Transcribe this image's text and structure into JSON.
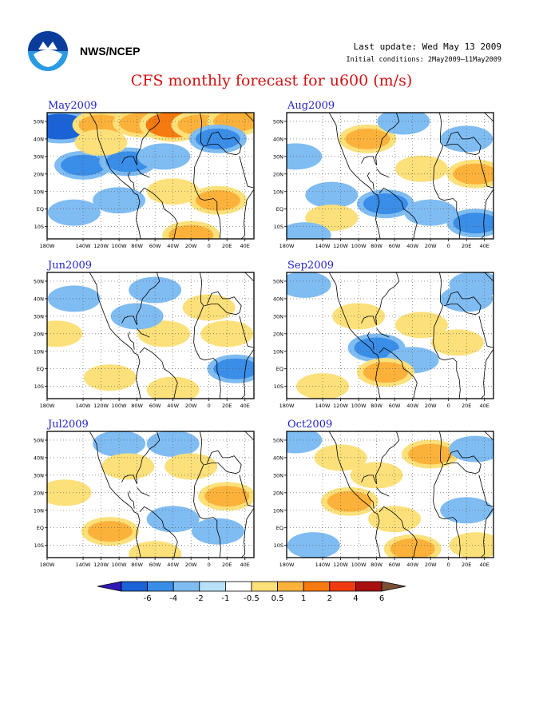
{
  "header": {
    "org": "NWS/NCEP",
    "last_update": "Last update: Wed May 13 2009",
    "initial_conditions": "Initial conditions: 2May2009–11May2009",
    "title": "CFS monthly forecast for u600 (m/s)",
    "logo_icon": "noaa-logo-icon"
  },
  "chart_data": {
    "type": "heatmap",
    "title": "CFS monthly forecast for u600 (m/s)",
    "x_ticks": [
      "180W",
      "140W",
      "120W",
      "100W",
      "80W",
      "60W",
      "40W",
      "20W",
      "0",
      "20E",
      "40E"
    ],
    "y_ticks": [
      "50N",
      "40N",
      "30N",
      "20N",
      "10N",
      "EQ",
      "10S"
    ],
    "panels": [
      {
        "label": "May2009",
        "anomalies": [
          {
            "lon": -165,
            "lat": 47,
            "value": -4
          },
          {
            "lon": -120,
            "lat": 48,
            "value": 2
          },
          {
            "lon": -75,
            "lat": 49,
            "value": 2
          },
          {
            "lon": -40,
            "lat": 48,
            "value": 4
          },
          {
            "lon": -10,
            "lat": 48,
            "value": 2
          },
          {
            "lon": 30,
            "lat": 50,
            "value": 2
          },
          {
            "lon": -140,
            "lat": 25,
            "value": -2
          },
          {
            "lon": -90,
            "lat": 27,
            "value": -2
          },
          {
            "lon": -50,
            "lat": 30,
            "value": -1
          },
          {
            "lon": 10,
            "lat": 40,
            "value": -2
          },
          {
            "lon": -120,
            "lat": 38,
            "value": 1
          },
          {
            "lon": -40,
            "lat": 10,
            "value": 1
          },
          {
            "lon": 10,
            "lat": 5,
            "value": 2
          },
          {
            "lon": -150,
            "lat": -2,
            "value": -1
          },
          {
            "lon": -20,
            "lat": -15,
            "value": 2
          },
          {
            "lon": -100,
            "lat": 5,
            "value": -1
          }
        ]
      },
      {
        "label": "Aug2009",
        "anomalies": [
          {
            "lon": -90,
            "lat": 40,
            "value": 2
          },
          {
            "lon": -30,
            "lat": 23,
            "value": 1
          },
          {
            "lon": 30,
            "lat": 20,
            "value": 2
          },
          {
            "lon": -130,
            "lat": 8,
            "value": -1
          },
          {
            "lon": -70,
            "lat": 3,
            "value": -2
          },
          {
            "lon": -20,
            "lat": -2,
            "value": -1
          },
          {
            "lon": 30,
            "lat": -8,
            "value": -2
          },
          {
            "lon": -130,
            "lat": -5,
            "value": 1
          },
          {
            "lon": -170,
            "lat": 30,
            "value": -1
          },
          {
            "lon": 20,
            "lat": 40,
            "value": -1
          },
          {
            "lon": -50,
            "lat": 50,
            "value": -1
          },
          {
            "lon": -160,
            "lat": -15,
            "value": -1
          }
        ]
      },
      {
        "label": "Jun2009",
        "anomalies": [
          {
            "lon": -150,
            "lat": 40,
            "value": -1
          },
          {
            "lon": -50,
            "lat": 20,
            "value": 1
          },
          {
            "lon": 20,
            "lat": 20,
            "value": 1
          },
          {
            "lon": 30,
            "lat": 0,
            "value": -2
          },
          {
            "lon": -40,
            "lat": -12,
            "value": 1
          },
          {
            "lon": -170,
            "lat": 20,
            "value": 1
          },
          {
            "lon": -60,
            "lat": 45,
            "value": -1
          },
          {
            "lon": 0,
            "lat": 35,
            "value": 1
          },
          {
            "lon": -110,
            "lat": -5,
            "value": 1
          },
          {
            "lon": -80,
            "lat": 30,
            "value": -1
          }
        ]
      },
      {
        "label": "Sep2009",
        "anomalies": [
          {
            "lon": -160,
            "lat": 48,
            "value": -1
          },
          {
            "lon": -80,
            "lat": 12,
            "value": -2
          },
          {
            "lon": -40,
            "lat": 5,
            "value": -1
          },
          {
            "lon": -100,
            "lat": 30,
            "value": 1
          },
          {
            "lon": -30,
            "lat": 25,
            "value": 1
          },
          {
            "lon": -70,
            "lat": -2,
            "value": 2
          },
          {
            "lon": -140,
            "lat": -10,
            "value": 1
          },
          {
            "lon": 20,
            "lat": 40,
            "value": -1
          },
          {
            "lon": 30,
            "lat": 48,
            "value": -1
          },
          {
            "lon": 10,
            "lat": 15,
            "value": 1
          }
        ]
      },
      {
        "label": "Jul2009",
        "anomalies": [
          {
            "lon": -100,
            "lat": 48,
            "value": -1
          },
          {
            "lon": -40,
            "lat": 48,
            "value": -1
          },
          {
            "lon": -90,
            "lat": 35,
            "value": 1
          },
          {
            "lon": 20,
            "lat": 18,
            "value": 2
          },
          {
            "lon": -110,
            "lat": -2,
            "value": 2
          },
          {
            "lon": -40,
            "lat": 5,
            "value": -1
          },
          {
            "lon": 10,
            "lat": -2,
            "value": -1
          },
          {
            "lon": -60,
            "lat": -15,
            "value": 1
          },
          {
            "lon": -160,
            "lat": 20,
            "value": 1
          },
          {
            "lon": -20,
            "lat": 35,
            "value": 1
          }
        ]
      },
      {
        "label": "Oct2009",
        "anomalies": [
          {
            "lon": -120,
            "lat": 40,
            "value": 1
          },
          {
            "lon": -20,
            "lat": 42,
            "value": 2
          },
          {
            "lon": 30,
            "lat": 45,
            "value": -1
          },
          {
            "lon": -110,
            "lat": 15,
            "value": 2
          },
          {
            "lon": -60,
            "lat": 5,
            "value": 1
          },
          {
            "lon": -40,
            "lat": -12,
            "value": 2
          },
          {
            "lon": -150,
            "lat": -10,
            "value": -1
          },
          {
            "lon": 20,
            "lat": 10,
            "value": -1
          },
          {
            "lon": -170,
            "lat": 50,
            "value": -1
          },
          {
            "lon": -80,
            "lat": 30,
            "value": 1
          },
          {
            "lon": 30,
            "lat": -10,
            "value": 1
          }
        ]
      }
    ],
    "colorbar": {
      "labels": [
        "-6",
        "-4",
        "-2",
        "-1",
        "-0.5",
        "0.5",
        "1",
        "2",
        "4",
        "6"
      ],
      "colors": [
        "#3018b8",
        "#1a62d6",
        "#3a8ee8",
        "#7fbcf2",
        "#b8e2fa",
        "#ffffff",
        "#fce07a",
        "#fcb23a",
        "#f57a10",
        "#f23a10",
        "#a81010",
        "#7a4e34"
      ]
    }
  }
}
